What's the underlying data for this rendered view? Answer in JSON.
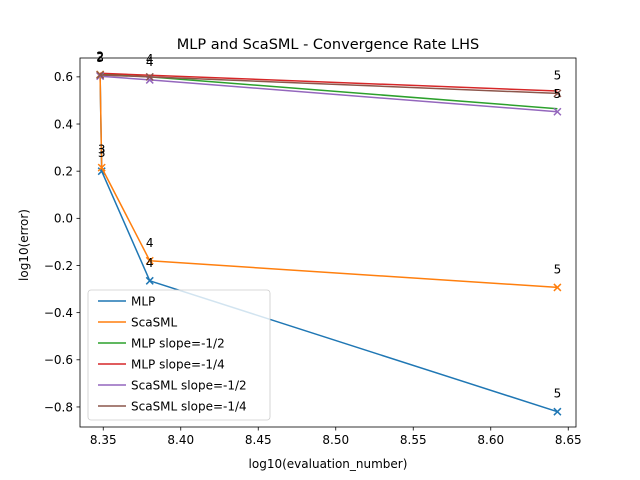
{
  "chart_data": {
    "type": "line",
    "title": "MLP and ScaSML - Convergence Rate LHS",
    "xlabel": "log10(evaluation_number)",
    "ylabel": "log10(error)",
    "xlim": [
      8.335,
      8.655
    ],
    "ylim": [
      -0.885,
      0.68
    ],
    "xticks": [
      "8.35",
      "8.40",
      "8.45",
      "8.50",
      "8.55",
      "8.60",
      "8.65"
    ],
    "xtick_values": [
      8.35,
      8.4,
      8.45,
      8.5,
      8.55,
      8.6,
      8.65
    ],
    "yticks": [
      "−0.8",
      "−0.6",
      "−0.4",
      "−0.2",
      "0.0",
      "0.2",
      "0.4",
      "0.6"
    ],
    "ytick_values": [
      -0.8,
      -0.6,
      -0.4,
      -0.2,
      0.0,
      0.2,
      0.4,
      0.6
    ],
    "grid": false,
    "legend_position": "lower-left",
    "series": [
      {
        "name": "MLP",
        "color": "#1f77b4",
        "marker": "x",
        "x": [
          8.348,
          8.349,
          8.38,
          8.643
        ],
        "y": [
          0.61,
          0.2,
          -0.265,
          -0.82
        ],
        "annotations": [
          "2",
          "3",
          "4",
          "5"
        ]
      },
      {
        "name": "ScaSML",
        "color": "#ff7f0e",
        "marker": "x",
        "x": [
          8.348,
          8.349,
          8.38,
          8.643
        ],
        "y": [
          0.61,
          0.215,
          -0.18,
          -0.293
        ],
        "annotations": [
          "2",
          "3",
          "4",
          "5"
        ]
      },
      {
        "name": "MLP slope=-1/2",
        "color": "#2ca02c",
        "marker": "",
        "x": [
          8.348,
          8.38,
          8.643
        ],
        "y": [
          0.612,
          0.6,
          0.465
        ]
      },
      {
        "name": "MLP slope=-1/4",
        "color": "#d62728",
        "marker": "",
        "x": [
          8.348,
          8.38,
          8.643
        ],
        "y": [
          0.615,
          0.607,
          0.54
        ]
      },
      {
        "name": "ScaSML slope=-1/2",
        "color": "#9467bd",
        "marker": "x",
        "x": [
          8.348,
          8.38,
          8.643
        ],
        "y": [
          0.603,
          0.587,
          0.452
        ],
        "annotations": [
          "3",
          "4",
          "5"
        ]
      },
      {
        "name": "ScaSML slope=-1/4",
        "color": "#8c564b",
        "marker": "x",
        "x": [
          8.348,
          8.38,
          8.643
        ],
        "y": [
          0.608,
          0.6,
          0.53
        ],
        "annotations": [
          "2",
          "4",
          "5"
        ]
      }
    ]
  }
}
